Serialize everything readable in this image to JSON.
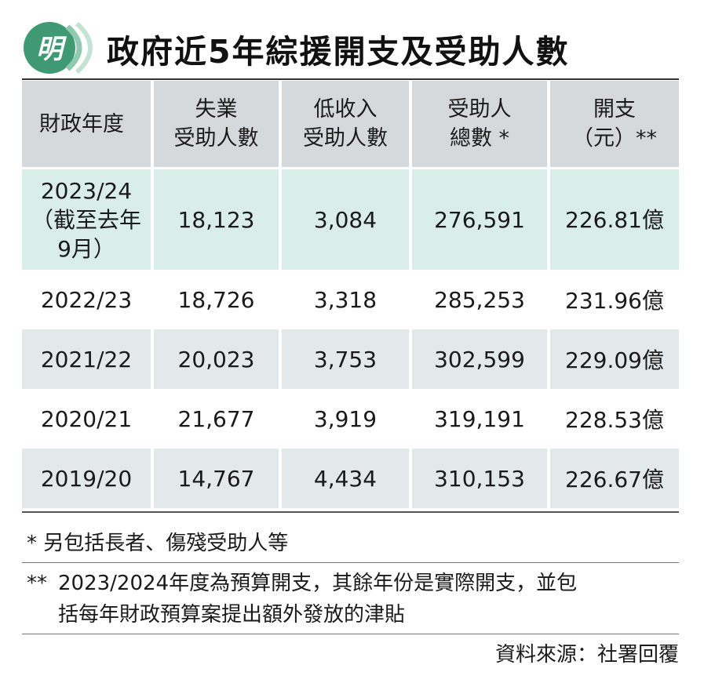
{
  "logo": {
    "text": "明"
  },
  "title": "政府近5年綜援開支及受助人數",
  "table": {
    "headers": [
      {
        "line1": "財政年度",
        "line2": ""
      },
      {
        "line1": "失業",
        "line2": "受助人數"
      },
      {
        "line1": "低收入",
        "line2": "受助人數"
      },
      {
        "line1": "受助人",
        "line2": "總數 *"
      },
      {
        "line1": "開支",
        "line2": "（元）**"
      }
    ],
    "highlight_row": {
      "year_line1": "2023/24",
      "year_line2": "（截至去年",
      "year_line3": "9月）",
      "unemployed": "18,123",
      "low_income": "3,084",
      "total": "276,591",
      "expenditure": "226.81億"
    },
    "rows": [
      {
        "year": "2022/23",
        "unemployed": "18,726",
        "low_income": "3,318",
        "total": "285,253",
        "expenditure": "231.96億"
      },
      {
        "year": "2021/22",
        "unemployed": "20,023",
        "low_income": "3,753",
        "total": "302,599",
        "expenditure": "229.09億"
      },
      {
        "year": "2020/21",
        "unemployed": "21,677",
        "low_income": "3,919",
        "total": "319,191",
        "expenditure": "228.53億"
      },
      {
        "year": "2019/20",
        "unemployed": "14,767",
        "low_income": "4,434",
        "total": "310,153",
        "expenditure": "226.67億"
      }
    ]
  },
  "notes": {
    "note1": "* 另包括長者、傷殘受助人等",
    "note2_mark": "**",
    "note2_line1": "2023/2024年度為預算開支，其餘年份是實際開支，並包",
    "note2_line2": "括每年財政預算案提出額外發放的津貼"
  },
  "source": "資料來源：社署回覆",
  "colors": {
    "header_bg": "#d5d9dc",
    "highlight_bg": "#d9eee9",
    "alt_row_bg": "#e3e8eb",
    "logo_green": "#3f9a74"
  }
}
